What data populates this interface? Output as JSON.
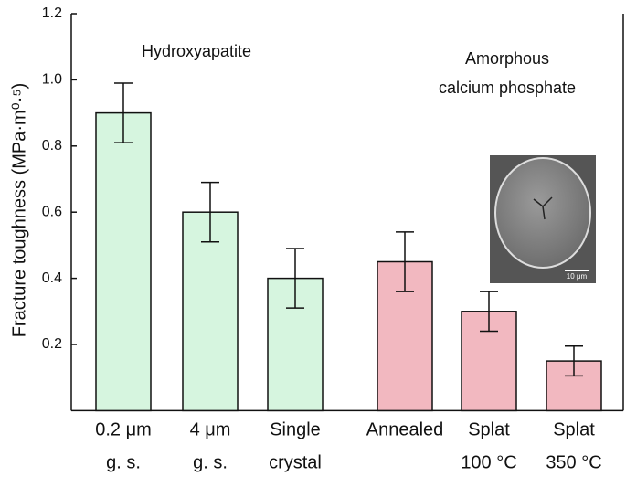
{
  "chart_data": {
    "type": "bar",
    "y_label": "Fracture toughness (MPa·m⁰·⁵)",
    "annotations": [
      "Hydroxyapatite",
      "Amorphous",
      "calcium phosphate"
    ],
    "categories": [
      [
        "0.2 μm",
        "g. s."
      ],
      [
        "4 μm",
        "g. s."
      ],
      [
        "Single",
        "crystal"
      ],
      [
        "Annealed"
      ],
      [
        "Splat",
        "100 °C"
      ],
      [
        "Splat",
        "350 °C"
      ]
    ],
    "values": [
      0.9,
      0.6,
      0.4,
      0.45,
      0.3,
      0.15
    ],
    "errors": [
      0.09,
      0.09,
      0.09,
      0.09,
      0.06,
      0.045
    ],
    "colors": [
      "#d6f5df",
      "#d6f5df",
      "#d6f5df",
      "#f2b8c0",
      "#f2b8c0",
      "#f2b8c0"
    ],
    "ylim": [
      0,
      1.2
    ],
    "yticks": [
      0.2,
      0.4,
      0.6,
      0.8,
      {
        "value": 1,
        "label": "1.0"
      },
      1.2
    ],
    "inset": {
      "scale_label": "10 μm"
    }
  }
}
